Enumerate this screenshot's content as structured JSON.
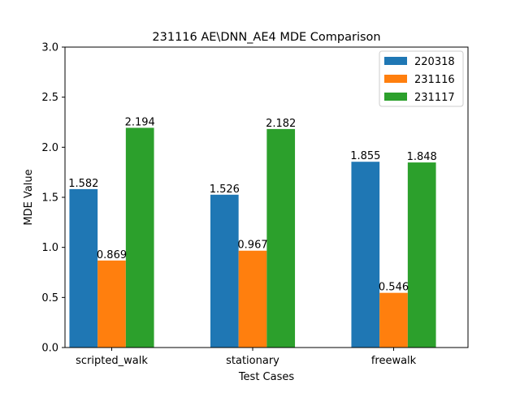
{
  "chart_data": {
    "type": "bar",
    "title": "231116 AE\\DNN_AE4 MDE Comparison",
    "xlabel": "Test Cases",
    "ylabel": "MDE Value",
    "categories": [
      "scripted_walk",
      "stationary",
      "freewalk"
    ],
    "series": [
      {
        "name": "220318",
        "color": "#1f77b4",
        "values": [
          1.582,
          1.526,
          1.855
        ],
        "labels": [
          "1.582",
          "1.526",
          "1.855"
        ]
      },
      {
        "name": "231116",
        "color": "#ff7f0e",
        "values": [
          0.869,
          0.967,
          0.546
        ],
        "labels": [
          "0.869",
          "0.967",
          "0.546"
        ]
      },
      {
        "name": "231117",
        "color": "#2ca02c",
        "values": [
          2.194,
          2.182,
          1.848
        ],
        "labels": [
          "2.194",
          "2.182",
          "1.848"
        ]
      }
    ],
    "ylim": [
      0,
      3.0
    ],
    "yticks": [
      "0.0",
      "0.5",
      "1.0",
      "1.5",
      "2.0",
      "2.5",
      "3.0"
    ],
    "grid": false,
    "legend": "top-right"
  }
}
